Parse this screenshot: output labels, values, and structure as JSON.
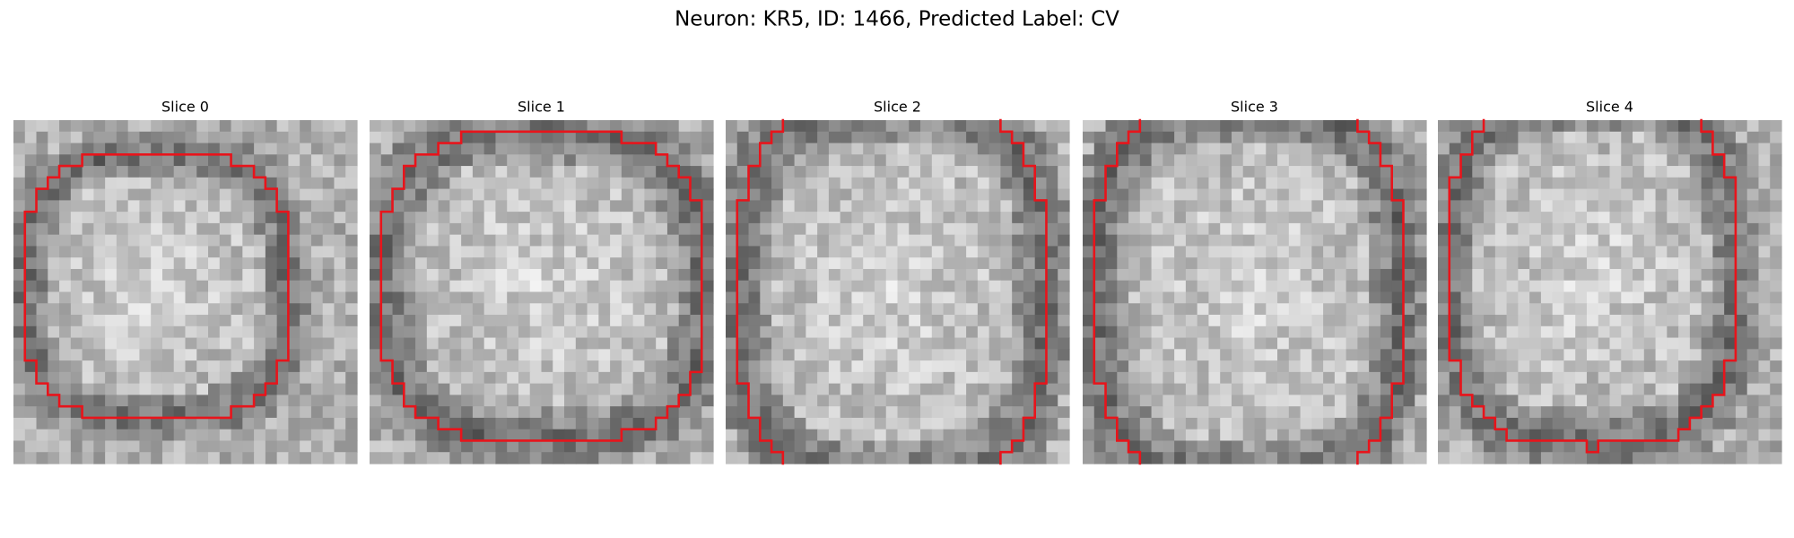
{
  "figure": {
    "title": "Neuron: KR5, ID: 1466, Predicted Label: CV",
    "panels": [
      {
        "title": "Slice 0"
      },
      {
        "title": "Slice 1"
      },
      {
        "title": "Slice 2"
      },
      {
        "title": "Slice 3"
      },
      {
        "title": "Slice 4"
      }
    ]
  }
}
